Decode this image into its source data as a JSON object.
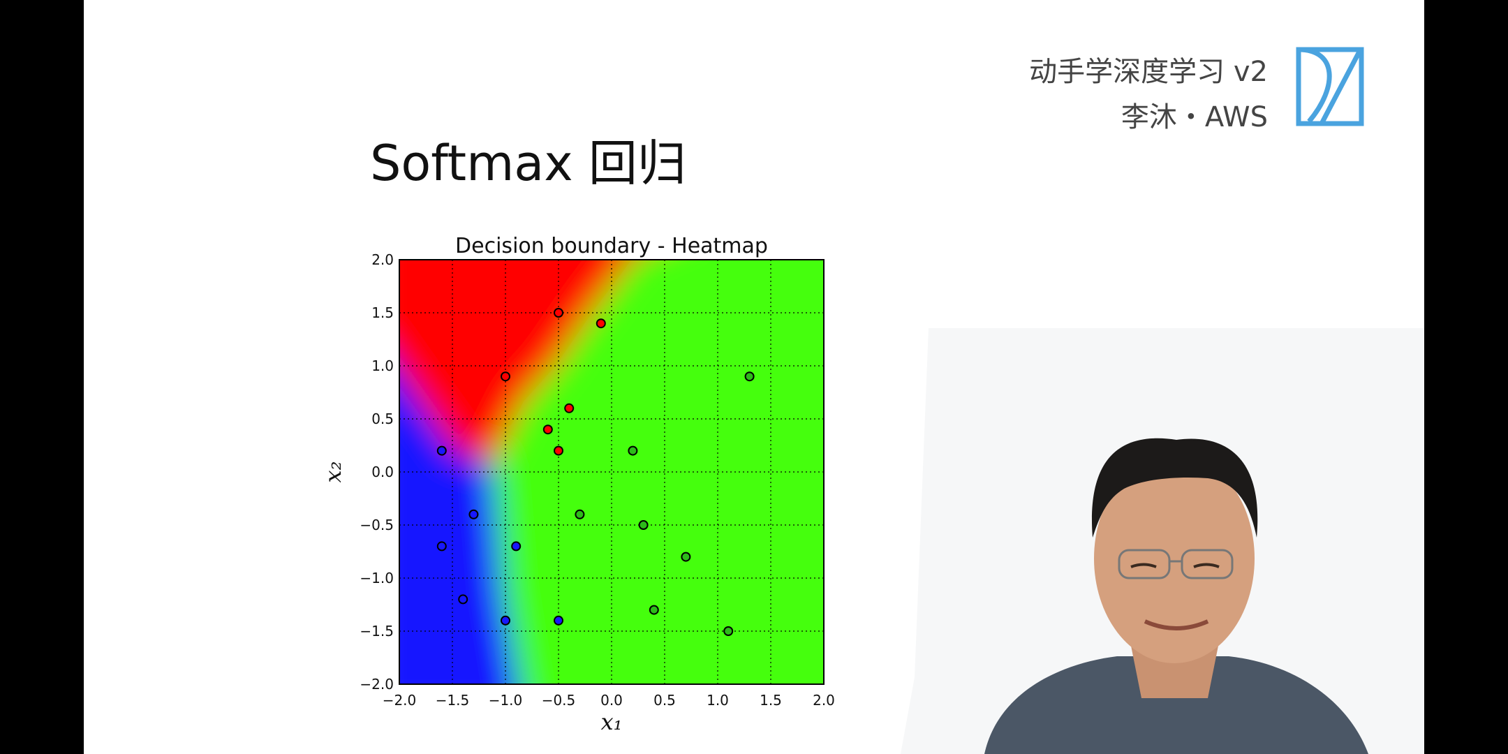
{
  "brand": {
    "line1": "动手学深度学习 v2",
    "line2": "李沐・AWS"
  },
  "slide_title": "Softmax 回归",
  "colors": {
    "red": "#ff0000",
    "green": "#44ff11",
    "blue": "#1818ff",
    "logo_blue": "#4aa3df"
  },
  "chart_data": {
    "type": "scatter",
    "title": "Decision boundary - Heatmap",
    "xlabel": "x₁",
    "ylabel": "x₂",
    "xlim": [
      -2.0,
      2.0
    ],
    "ylim": [
      -2.0,
      2.0
    ],
    "grid": true,
    "background": "heatmap",
    "xticks": [
      "−2.0",
      "−1.5",
      "−1.0",
      "−0.5",
      "0.0",
      "0.5",
      "1.0",
      "1.5",
      "2.0"
    ],
    "yticks": [
      "−2.0",
      "−1.5",
      "−1.0",
      "−0.5",
      "0.0",
      "0.5",
      "1.0",
      "1.5",
      "2.0"
    ],
    "series": [
      {
        "color": "#ff0000",
        "points": [
          [
            -0.5,
            1.5
          ],
          [
            -0.1,
            1.4
          ],
          [
            -1.0,
            0.9
          ],
          [
            -0.4,
            0.6
          ],
          [
            -0.6,
            0.4
          ],
          [
            -0.5,
            0.2
          ]
        ]
      },
      {
        "color": "#2dbb1a",
        "points": [
          [
            1.3,
            0.9
          ],
          [
            0.2,
            0.2
          ],
          [
            -0.3,
            -0.4
          ],
          [
            0.3,
            -0.5
          ],
          [
            0.7,
            -0.8
          ],
          [
            0.4,
            -1.3
          ],
          [
            1.1,
            -1.5
          ]
        ]
      },
      {
        "color": "#1818ff",
        "points": [
          [
            -1.6,
            0.2
          ],
          [
            -1.3,
            -0.4
          ],
          [
            -1.6,
            -0.7
          ],
          [
            -0.9,
            -0.7
          ],
          [
            -1.4,
            -1.2
          ],
          [
            -1.0,
            -1.4
          ],
          [
            -0.5,
            -1.4
          ]
        ]
      }
    ]
  }
}
